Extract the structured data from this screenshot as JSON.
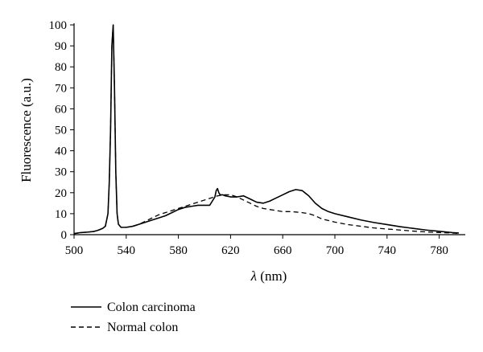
{
  "chart_data": {
    "type": "line",
    "title": "",
    "xlabel_symbol": "λ",
    "xlabel_unit": " (nm)",
    "ylabel": "Fluorescence (a.u.)",
    "xlim": [
      500,
      800
    ],
    "ylim": [
      0,
      100
    ],
    "xticks": [
      500,
      540,
      580,
      620,
      660,
      700,
      740,
      780
    ],
    "yticks": [
      0,
      10,
      20,
      30,
      40,
      50,
      60,
      70,
      80,
      90,
      100
    ],
    "grid": false,
    "legend_position": "bottom-left",
    "series": [
      {
        "name": "Colon carcinoma",
        "style": "solid",
        "color": "#000000",
        "x": [
          500,
          505,
          510,
          515,
          518,
          520,
          522,
          524,
          526,
          527,
          528,
          529,
          530,
          531,
          532,
          533,
          534,
          536,
          540,
          545,
          550,
          555,
          560,
          565,
          570,
          575,
          580,
          585,
          590,
          595,
          600,
          604,
          606,
          608,
          609,
          610,
          611,
          612,
          614,
          616,
          620,
          625,
          630,
          635,
          640,
          645,
          650,
          655,
          660,
          665,
          670,
          675,
          680,
          685,
          690,
          695,
          700,
          710,
          720,
          730,
          740,
          750,
          760,
          770,
          780,
          790,
          795
        ],
        "y": [
          0.5,
          1,
          1.2,
          1.5,
          2,
          2.5,
          3,
          4,
          10,
          25,
          50,
          90,
          100,
          70,
          30,
          10,
          5,
          3.5,
          3.5,
          4,
          5,
          6,
          7,
          8,
          9,
          10.5,
          12,
          13,
          13.5,
          14,
          14,
          14,
          16,
          18,
          21,
          22,
          20,
          19,
          19,
          18.5,
          18,
          18,
          18.5,
          17,
          15.5,
          15,
          16,
          17.5,
          19,
          20.5,
          21.5,
          21,
          18.5,
          15,
          12.5,
          11,
          10,
          8.5,
          7,
          5.8,
          4.8,
          3.8,
          3,
          2.2,
          1.6,
          1,
          0.8
        ]
      },
      {
        "name": "Normal colon",
        "style": "dashed",
        "color": "#000000",
        "x": [
          500,
          505,
          510,
          515,
          518,
          520,
          522,
          524,
          526,
          527,
          528,
          529,
          530,
          531,
          532,
          533,
          534,
          536,
          540,
          545,
          550,
          555,
          560,
          565,
          570,
          575,
          580,
          585,
          590,
          595,
          600,
          605,
          610,
          615,
          620,
          625,
          630,
          635,
          640,
          645,
          650,
          655,
          660,
          665,
          670,
          675,
          680,
          685,
          690,
          700,
          710,
          720,
          730,
          740,
          750,
          760,
          770,
          780,
          790,
          795
        ],
        "y": [
          0.5,
          1,
          1.2,
          1.5,
          2,
          2.5,
          3,
          4,
          10,
          25,
          50,
          90,
          100,
          70,
          30,
          10,
          5,
          3.5,
          3.5,
          4,
          5,
          6.5,
          8,
          9.5,
          10.5,
          11.5,
          12.5,
          13.5,
          14.5,
          15.5,
          16.5,
          17.5,
          18.5,
          19,
          19,
          18,
          16.5,
          15,
          13.5,
          12.5,
          12,
          11.5,
          11,
          11,
          10.8,
          10.5,
          10,
          9,
          7.5,
          6,
          4.8,
          4,
          3.2,
          2.7,
          2.2,
          1.7,
          1.3,
          1,
          0.8,
          0.6
        ]
      }
    ]
  }
}
